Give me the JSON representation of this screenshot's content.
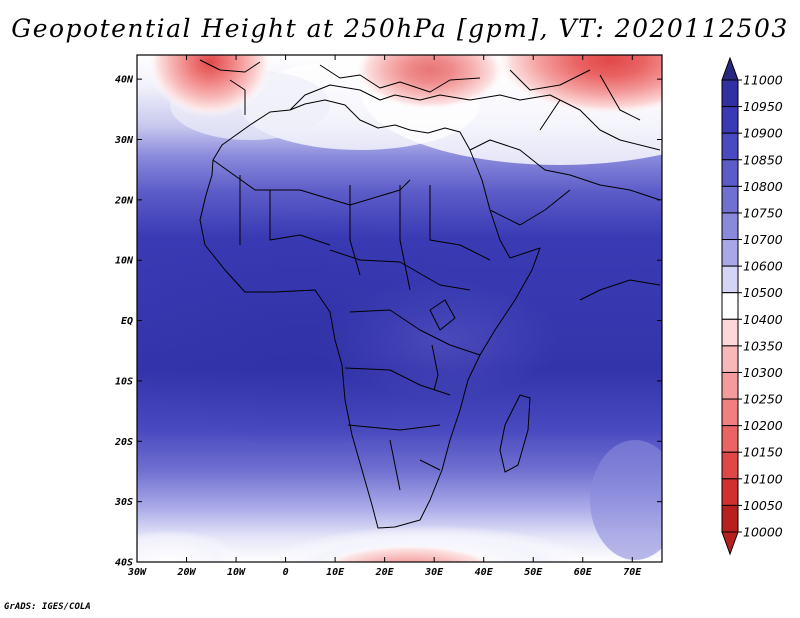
{
  "title": "Geopotential Height at 250hPa [gpm], VT: 2020112503",
  "credit": "GrADS: IGES/COLA",
  "map": {
    "lon_labels": [
      "30W",
      "20W",
      "10W",
      "0",
      "10E",
      "20E",
      "30E",
      "40E",
      "50E",
      "60E",
      "70E"
    ],
    "lon_values": [
      -30,
      -20,
      -10,
      0,
      10,
      20,
      30,
      40,
      50,
      60,
      70
    ],
    "lat_labels": [
      "40N",
      "30N",
      "20N",
      "10N",
      "EQ",
      "10S",
      "20S",
      "30S",
      "40S"
    ],
    "lat_values": [
      40,
      30,
      20,
      10,
      0,
      -10,
      -20,
      -30,
      -40
    ],
    "lon_range": [
      -30,
      76
    ],
    "lat_range": [
      -40,
      44
    ]
  },
  "colorbar": {
    "levels": [
      "11000",
      "10950",
      "10900",
      "10850",
      "10800",
      "10750",
      "10700",
      "10600",
      "10500",
      "10400",
      "10350",
      "10300",
      "10250",
      "10200",
      "10150",
      "10100",
      "10050",
      "10000"
    ],
    "colors": [
      "#28287f",
      "#3030a0",
      "#3a3ab4",
      "#4a4ac0",
      "#5c5cc8",
      "#7070d0",
      "#8a8adc",
      "#a8a8e8",
      "#d4d4f4",
      "#ffffff",
      "#fcd8d8",
      "#f8b8b8",
      "#f49c9c",
      "#f08080",
      "#ea6464",
      "#e04848",
      "#d03030",
      "#b82020"
    ]
  }
}
